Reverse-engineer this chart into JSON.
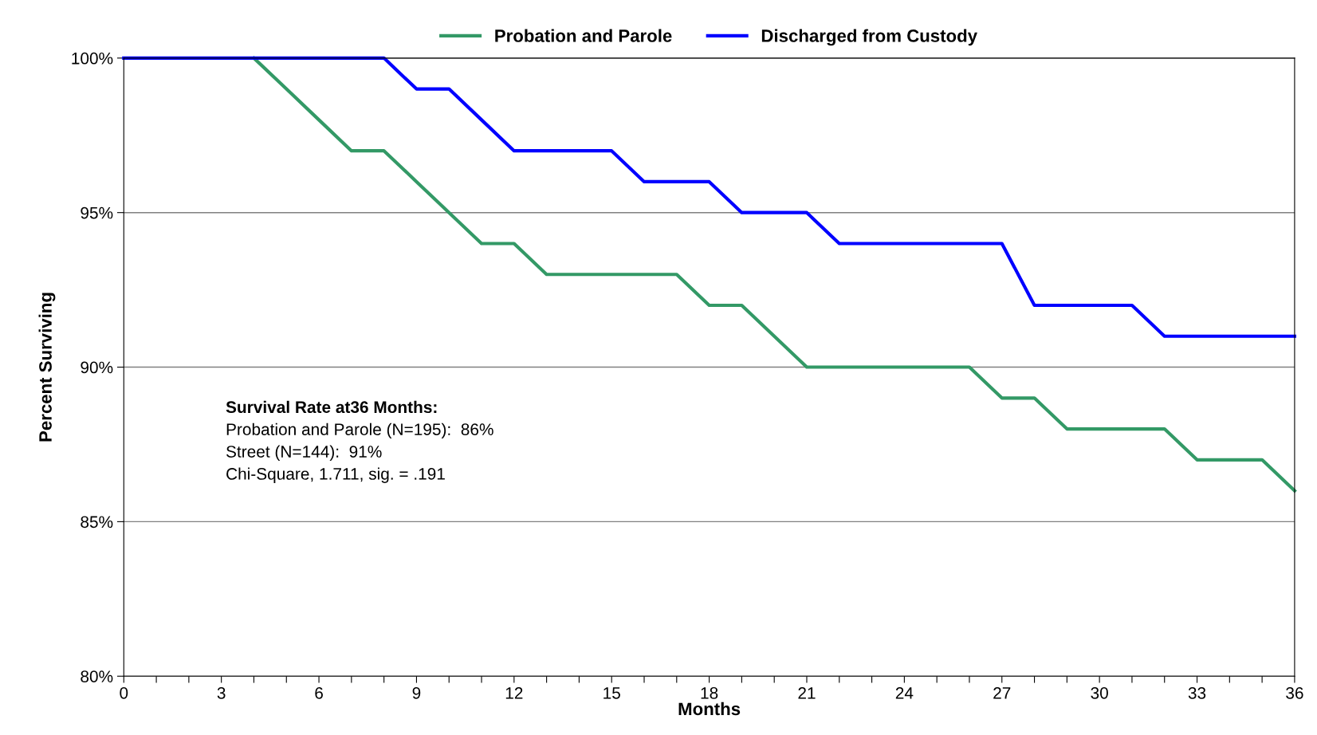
{
  "chart_data": {
    "type": "line",
    "xlabel": "Months",
    "ylabel": "Percent Surviving",
    "x": [
      0,
      1,
      2,
      3,
      4,
      5,
      6,
      7,
      8,
      9,
      10,
      11,
      12,
      13,
      14,
      15,
      16,
      17,
      18,
      19,
      20,
      21,
      22,
      23,
      24,
      25,
      26,
      27,
      28,
      29,
      30,
      31,
      32,
      33,
      34,
      35,
      36
    ],
    "series": [
      {
        "name": "Probation and Parole",
        "color": "#339966",
        "values": [
          null,
          null,
          null,
          null,
          100,
          99,
          98,
          97,
          97,
          96,
          95,
          94,
          94,
          93,
          93,
          93,
          93,
          93,
          92,
          92,
          91,
          90,
          90,
          90,
          90,
          90,
          90,
          89,
          89,
          88,
          88,
          88,
          88,
          87,
          87,
          87,
          86
        ]
      },
      {
        "name": "Discharged from Custody",
        "color": "#0000ff",
        "values": [
          100,
          100,
          100,
          100,
          100,
          100,
          100,
          100,
          100,
          99,
          99,
          98,
          97,
          97,
          97,
          97,
          96,
          96,
          96,
          95,
          95,
          95,
          94,
          94,
          94,
          94,
          94,
          94,
          92,
          92,
          92,
          92,
          91,
          91,
          91,
          91,
          91
        ]
      }
    ],
    "xlim": [
      0,
      36
    ],
    "xticks": [
      0,
      {
        "value": 1,
        "label": null
      },
      {
        "value": 2,
        "label": null
      },
      3,
      {
        "value": 4,
        "label": null
      },
      {
        "value": 5,
        "label": null
      },
      6,
      {
        "value": 7,
        "label": null
      },
      {
        "value": 8,
        "label": null
      },
      9,
      {
        "value": 10,
        "label": null
      },
      {
        "value": 11,
        "label": null
      },
      12,
      {
        "value": 13,
        "label": null
      },
      {
        "value": 14,
        "label": null
      },
      15,
      {
        "value": 16,
        "label": null
      },
      {
        "value": 17,
        "label": null
      },
      18,
      {
        "value": 19,
        "label": null
      },
      {
        "value": 20,
        "label": null
      },
      21,
      {
        "value": 22,
        "label": null
      },
      {
        "value": 23,
        "label": null
      },
      24,
      {
        "value": 25,
        "label": null
      },
      {
        "value": 26,
        "label": null
      },
      27,
      {
        "value": 28,
        "label": null
      },
      {
        "value": 29,
        "label": null
      },
      30,
      {
        "value": 31,
        "label": null
      },
      {
        "value": 32,
        "label": null
      },
      33,
      {
        "value": 34,
        "label": null
      },
      {
        "value": 35,
        "label": null
      },
      36
    ],
    "ylim": [
      80,
      100
    ],
    "yticks": [
      {
        "value": 80,
        "label": "80%"
      },
      {
        "value": 85,
        "label": "85%"
      },
      {
        "value": 90,
        "label": "90%"
      },
      {
        "value": 95,
        "label": "95%"
      },
      {
        "value": 100,
        "label": "100%"
      }
    ],
    "grid": "y",
    "legend": "top",
    "marker": "none",
    "line_style": "solid",
    "annotations": [
      "Survival Rate at36 Months:",
      "Probation and Parole (N=195):  86%",
      "Street (N=144):  91%",
      "Chi-Square, 1.711, sig. = .191"
    ]
  }
}
